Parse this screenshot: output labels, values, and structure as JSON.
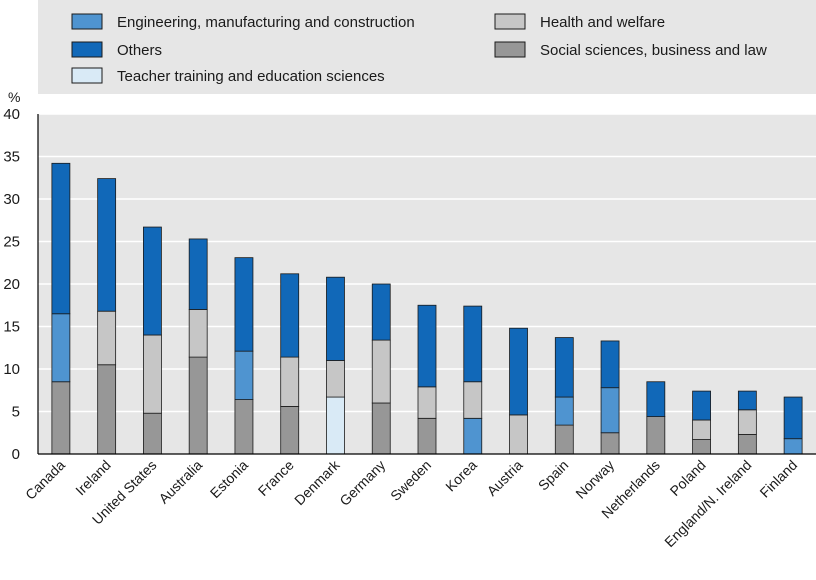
{
  "colors": {
    "legend_bg": "#e6e6e6",
    "grid": "#ffffff",
    "axis": "#000000",
    "bar_stroke": "#1a1a1a",
    "Engineering, manufacturing and construction": "#4f94d0",
    "Others": "#1168b8",
    "Teacher training and education sciences": "#d9eaf6",
    "Health and welfare": "#c6c6c6",
    "Social sciences, business and law": "#979797"
  },
  "chart_data": {
    "type": "bar",
    "stacked": true,
    "unit_label": "%",
    "ylim": [
      0,
      40
    ],
    "yticks": [
      0,
      5,
      10,
      15,
      20,
      25,
      30,
      35,
      40
    ],
    "grid": true,
    "legend_position": "top",
    "legend": [
      "Engineering, manufacturing and construction",
      "Health and welfare",
      "Others",
      "Social sciences, business and law",
      "Teacher training and education sciences"
    ],
    "categories": [
      "Canada",
      "Ireland",
      "United States",
      "Australia",
      "Estonia",
      "France",
      "Denmark",
      "Germany",
      "Sweden",
      "Korea",
      "Austria",
      "Spain",
      "Norway",
      "Netherlands",
      "Poland",
      "England/N. Ireland",
      "Finland"
    ],
    "bars": [
      {
        "category": "Canada",
        "segments": [
          [
            "Social sciences, business and law",
            8.5
          ],
          [
            "Engineering, manufacturing and construction",
            8.0
          ],
          [
            "Others",
            17.7
          ]
        ]
      },
      {
        "category": "Ireland",
        "segments": [
          [
            "Social sciences, business and law",
            10.5
          ],
          [
            "Health and welfare",
            6.3
          ],
          [
            "Others",
            15.6
          ]
        ]
      },
      {
        "category": "United States",
        "segments": [
          [
            "Social sciences, business and law",
            4.8
          ],
          [
            "Health and welfare",
            9.2
          ],
          [
            "Others",
            12.7
          ]
        ]
      },
      {
        "category": "Australia",
        "segments": [
          [
            "Social sciences, business and law",
            11.4
          ],
          [
            "Health and welfare",
            5.6
          ],
          [
            "Others",
            8.3
          ]
        ]
      },
      {
        "category": "Estonia",
        "segments": [
          [
            "Social sciences, business and law",
            6.4
          ],
          [
            "Engineering, manufacturing and construction",
            5.7
          ],
          [
            "Others",
            11.0
          ]
        ]
      },
      {
        "category": "France",
        "segments": [
          [
            "Social sciences, business and law",
            5.6
          ],
          [
            "Health and welfare",
            5.8
          ],
          [
            "Others",
            9.8
          ]
        ]
      },
      {
        "category": "Denmark",
        "segments": [
          [
            "Teacher training and education sciences",
            6.7
          ],
          [
            "Health and welfare",
            4.3
          ],
          [
            "Others",
            9.8
          ]
        ]
      },
      {
        "category": "Germany",
        "segments": [
          [
            "Social sciences, business and law",
            6.0
          ],
          [
            "Health and welfare",
            7.4
          ],
          [
            "Others",
            6.6
          ]
        ]
      },
      {
        "category": "Sweden",
        "segments": [
          [
            "Social sciences, business and law",
            4.2
          ],
          [
            "Health and welfare",
            3.7
          ],
          [
            "Others",
            9.6
          ]
        ]
      },
      {
        "category": "Korea",
        "segments": [
          [
            "Engineering, manufacturing and construction",
            4.2
          ],
          [
            "Health and welfare",
            4.3
          ],
          [
            "Others",
            8.9
          ]
        ]
      },
      {
        "category": "Austria",
        "segments": [
          [
            "Health and welfare",
            4.6
          ],
          [
            "Others",
            10.2
          ]
        ]
      },
      {
        "category": "Spain",
        "segments": [
          [
            "Social sciences, business and law",
            3.4
          ],
          [
            "Engineering, manufacturing and construction",
            3.3
          ],
          [
            "Others",
            7.0
          ]
        ]
      },
      {
        "category": "Norway",
        "segments": [
          [
            "Social sciences, business and law",
            2.5
          ],
          [
            "Engineering, manufacturing and construction",
            5.3
          ],
          [
            "Others",
            5.5
          ]
        ]
      },
      {
        "category": "Netherlands",
        "segments": [
          [
            "Social sciences, business and law",
            4.4
          ],
          [
            "Others",
            4.1
          ]
        ]
      },
      {
        "category": "Poland",
        "segments": [
          [
            "Social sciences, business and law",
            1.7
          ],
          [
            "Health and welfare",
            2.3
          ],
          [
            "Others",
            3.4
          ]
        ]
      },
      {
        "category": "England/N. Ireland",
        "segments": [
          [
            "Social sciences, business and law",
            2.3
          ],
          [
            "Health and welfare",
            2.9
          ],
          [
            "Others",
            2.2
          ]
        ]
      },
      {
        "category": "Finland",
        "segments": [
          [
            "Engineering, manufacturing and construction",
            1.8
          ],
          [
            "Others",
            4.9
          ]
        ]
      }
    ]
  }
}
